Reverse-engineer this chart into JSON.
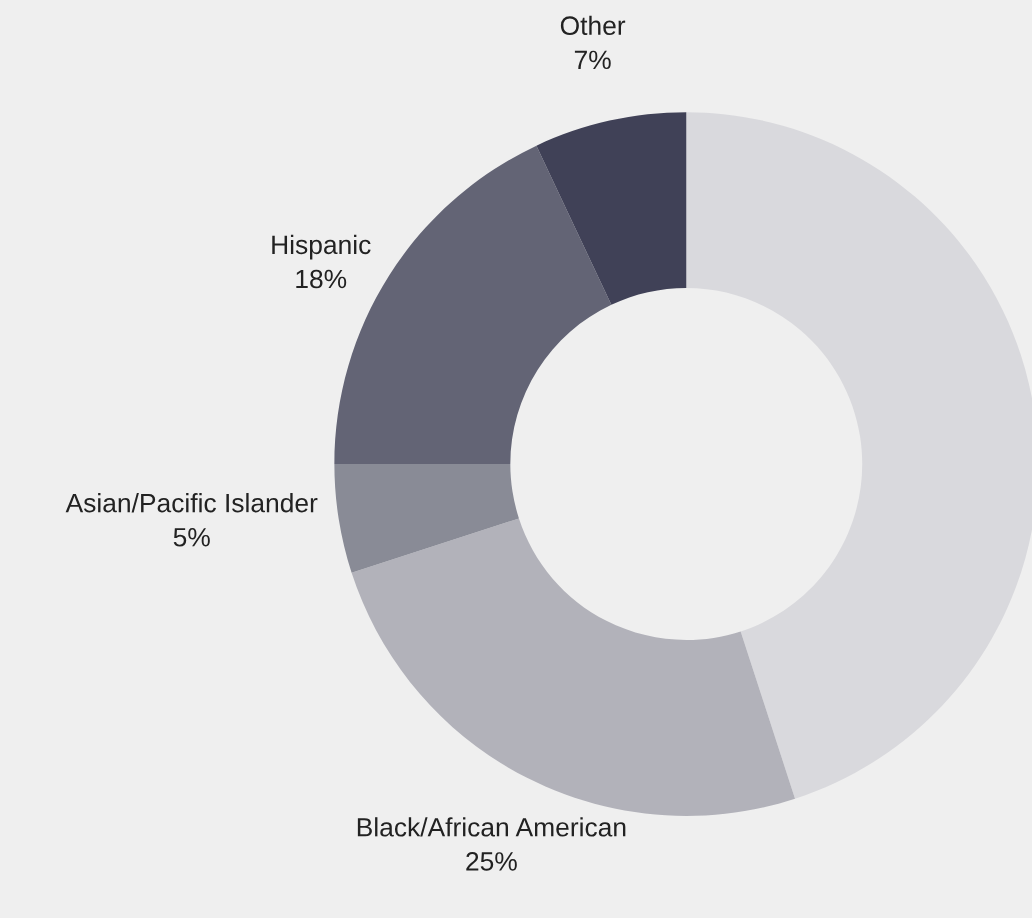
{
  "chart_data": {
    "type": "donut",
    "categories": [
      null,
      "Black/African American",
      "Asian/Pacific Islander",
      "Hispanic",
      "Other"
    ],
    "values": [
      45,
      25,
      5,
      18,
      7
    ],
    "value_labels": [
      null,
      "25%",
      "5%",
      "18%",
      "7%"
    ],
    "colors": [
      "#d9d9dd",
      "#b2b2ba",
      "#898b96",
      "#636475",
      "#404157"
    ],
    "legend": false
  }
}
